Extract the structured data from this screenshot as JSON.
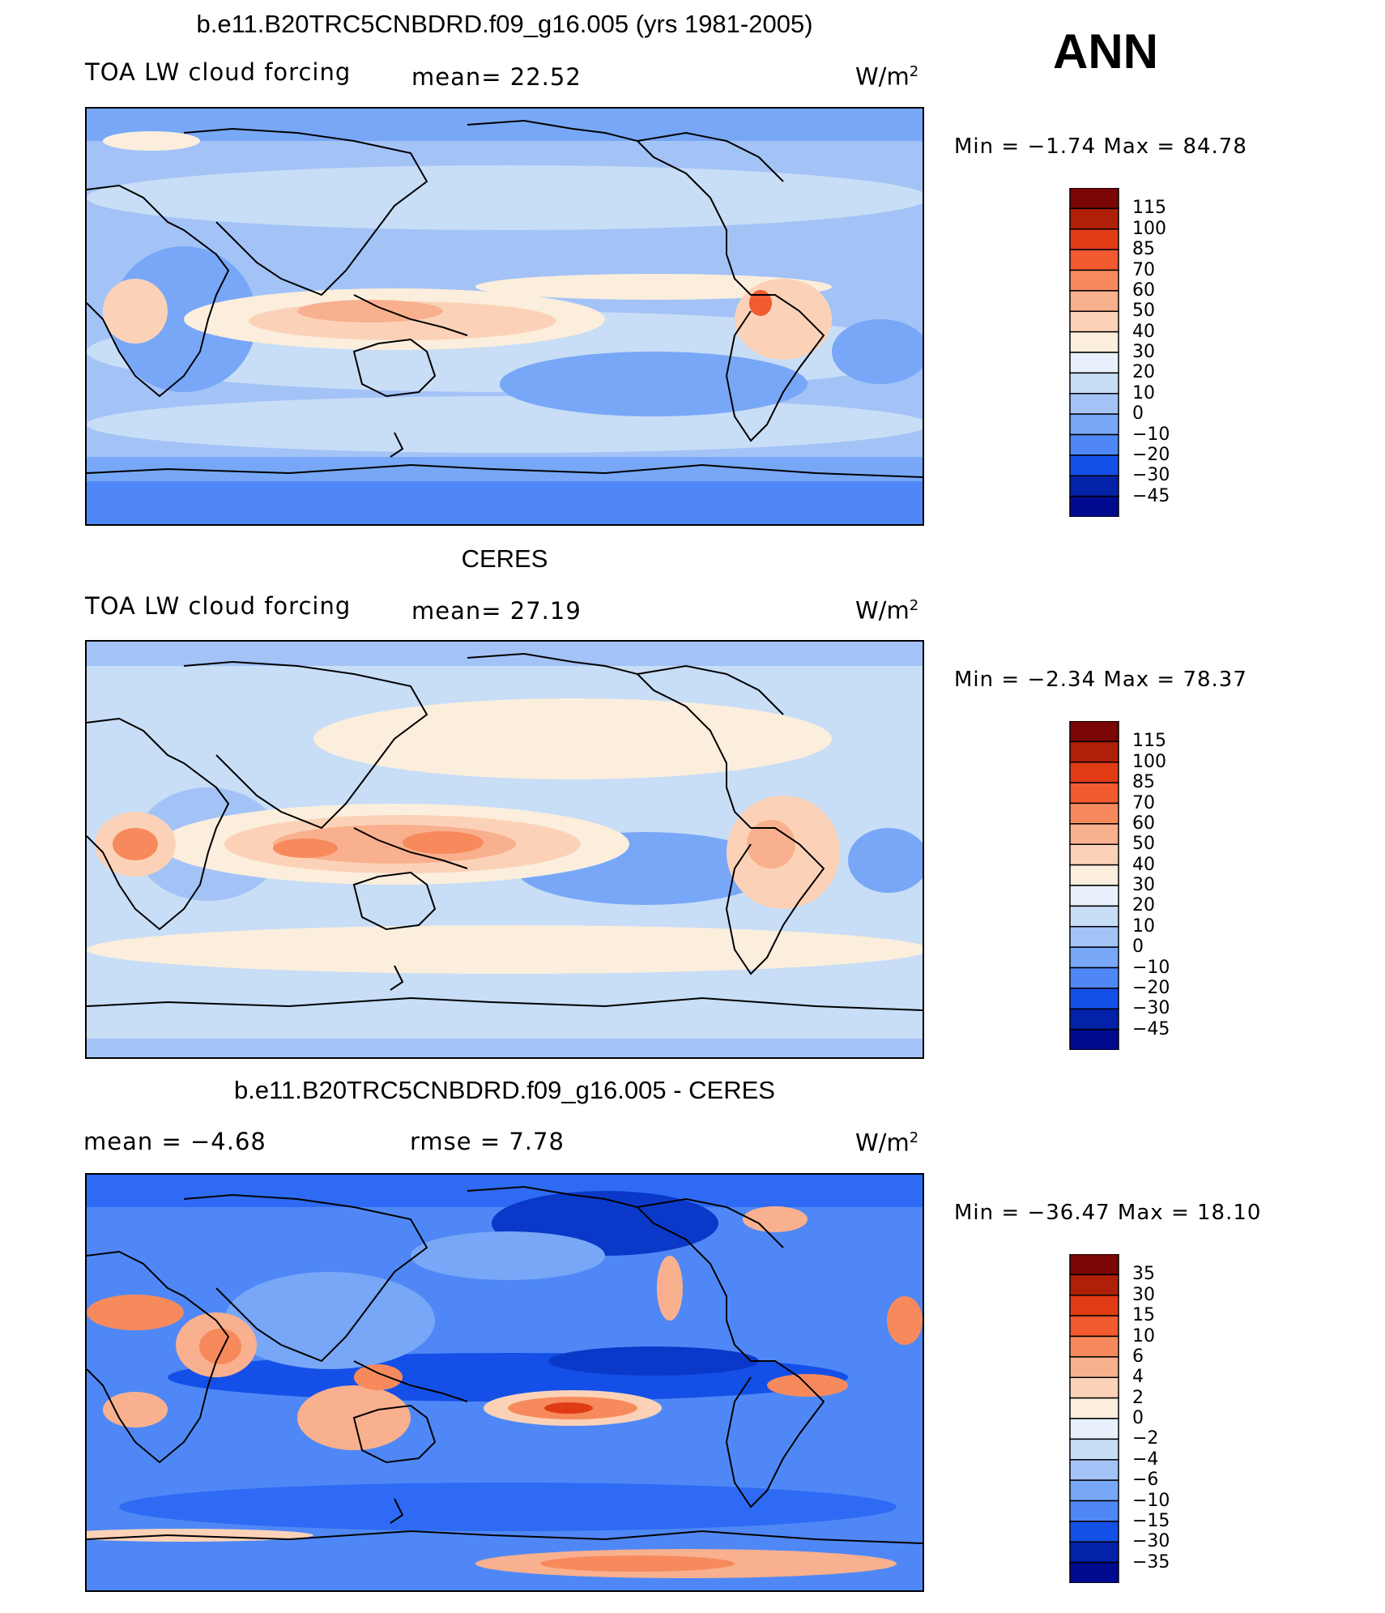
{
  "season": "ANN",
  "colors": {
    "ramp_blue_to_red": [
      "#000a8f",
      "#0322a8",
      "#0a38c9",
      "#1450e8",
      "#2e6af4",
      "#4f88f6",
      "#78a7f7",
      "#a3c3f7",
      "#c8ddf6",
      "#e8f1fb",
      "#fbeedd",
      "#fbd2b8",
      "#f9b08e",
      "#f78a5c",
      "#f25a30",
      "#e03b15",
      "#b01f08",
      "#7a0606"
    ]
  },
  "panels": [
    {
      "title": "b.e11.B20TRC5CNBDRD.f09_g16.005 (yrs 1981-2005)",
      "left_label": "TOA LW cloud forcing",
      "mid_label": "mean=   22.52",
      "units": "W/m",
      "units_sup": "2",
      "minmax": "Min  =   −1.74  Max  =   84.78",
      "colorbar_labels": [
        "115",
        "100",
        "85",
        "70",
        "60",
        "50",
        "40",
        "30",
        "20",
        "10",
        "0",
        "−10",
        "−20",
        "−30",
        "−45"
      ]
    },
    {
      "title": "CERES",
      "left_label": "TOA LW cloud forcing",
      "mid_label": "mean=   27.19",
      "units": "W/m",
      "units_sup": "2",
      "minmax": "Min  =   −2.34  Max  =   78.37",
      "colorbar_labels": [
        "115",
        "100",
        "85",
        "70",
        "60",
        "50",
        "40",
        "30",
        "20",
        "10",
        "0",
        "−10",
        "−20",
        "−30",
        "−45"
      ]
    },
    {
      "title": "b.e11.B20TRC5CNBDRD.f09_g16.005 - CERES",
      "left_label": "mean  =    −4.68",
      "mid_label": "rmse  =     7.78",
      "units": "W/m",
      "units_sup": "2",
      "minmax": "Min  = −36.47  Max  =    18.10",
      "colorbar_labels": [
        "35",
        "30",
        "15",
        "10",
        "6",
        "4",
        "2",
        "0",
        "−2",
        "−4",
        "−6",
        "−10",
        "−15",
        "−30",
        "−35"
      ]
    }
  ],
  "chart_data": [
    {
      "type": "heatmap",
      "title": "b.e11.B20TRC5CNBDRD.f09_g16.005 (yrs 1981-2005)",
      "variable": "TOA LW cloud forcing",
      "units": "W/m2",
      "mean": 22.52,
      "min": -1.74,
      "max": 84.78,
      "contour_levels": [
        -45,
        -30,
        -20,
        -10,
        0,
        10,
        20,
        30,
        40,
        50,
        60,
        70,
        85,
        100,
        115
      ]
    },
    {
      "type": "heatmap",
      "title": "CERES",
      "variable": "TOA LW cloud forcing",
      "units": "W/m2",
      "mean": 27.19,
      "min": -2.34,
      "max": 78.37,
      "contour_levels": [
        -45,
        -30,
        -20,
        -10,
        0,
        10,
        20,
        30,
        40,
        50,
        60,
        70,
        85,
        100,
        115
      ]
    },
    {
      "type": "heatmap",
      "title": "b.e11.B20TRC5CNBDRD.f09_g16.005 - CERES",
      "units": "W/m2",
      "mean": -4.68,
      "rmse": 7.78,
      "min": -36.47,
      "max": 18.1,
      "contour_levels": [
        -35,
        -30,
        -15,
        -10,
        -6,
        -4,
        -2,
        0,
        2,
        4,
        6,
        10,
        15,
        30,
        35
      ]
    }
  ]
}
